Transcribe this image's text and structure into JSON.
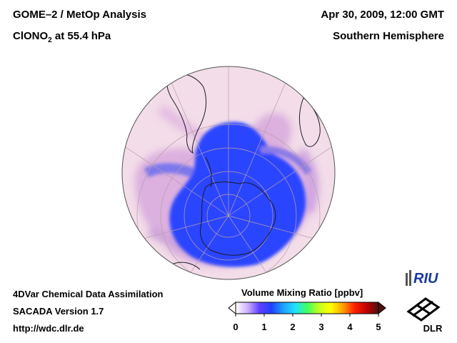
{
  "header": {
    "title_line1": "GOME–2 / MetOp Analysis",
    "title_species": "ClONO",
    "title_subscript": "2",
    "title_level": " at 55.4 hPa",
    "datetime": "Apr 30, 2009, 12:00 GMT",
    "hemisphere": "Southern Hemisphere"
  },
  "footer": {
    "line1": "4DVar Chemical Data Assimilation",
    "line2": "SACADA Version 1.7",
    "line3": "http://wdc.dlr.de"
  },
  "colorbar": {
    "title": "Volume Mixing Ratio [ppbv]",
    "ticks": [
      "0",
      "1",
      "2",
      "3",
      "4",
      "5"
    ],
    "range": [
      0,
      5
    ],
    "colors": [
      "#ffffff",
      "#d0b0ff",
      "#6040ff",
      "#2040ff",
      "#20a0ff",
      "#20e0ff",
      "#40ff60",
      "#c0ff20",
      "#ffff00",
      "#ffa000",
      "#ff2000",
      "#c00000",
      "#501010"
    ]
  },
  "logos": {
    "riu": "RIU",
    "dlr": "DLR"
  },
  "map": {
    "projection": "orthographic",
    "hemisphere": "south",
    "background_color": "#f3dde8",
    "low_value_color": "#2244ff",
    "continents": [
      "Antarctica",
      "South America",
      "Africa",
      "Australia"
    ]
  }
}
